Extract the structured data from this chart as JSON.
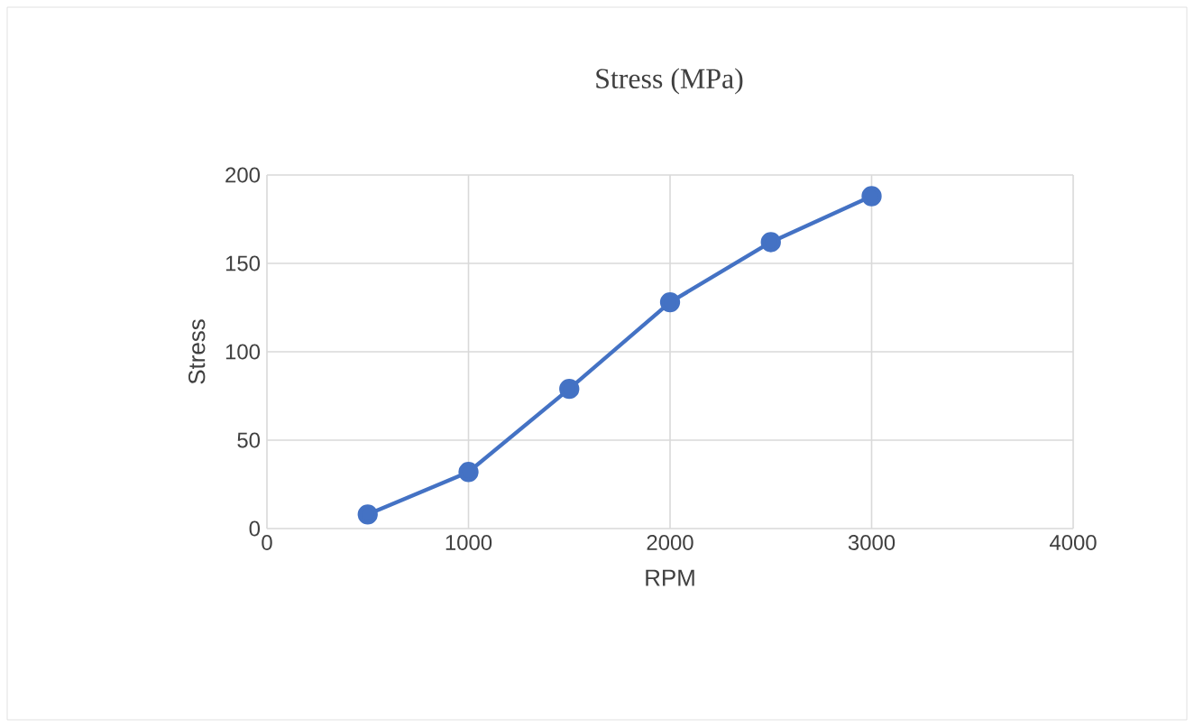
{
  "chart_data": {
    "type": "line",
    "title": "Stress (MPa)",
    "xlabel": "RPM",
    "ylabel": "Stress",
    "x": [
      500,
      1000,
      1500,
      2000,
      2500,
      3000
    ],
    "series": [
      {
        "color": "#4472c4",
        "values": [
          8,
          32,
          79,
          128,
          162,
          188
        ]
      }
    ],
    "xlim": [
      0,
      4000
    ],
    "xticks": [
      0,
      1000,
      2000,
      3000,
      4000
    ],
    "ylim": [
      0,
      200
    ],
    "yticks": [
      0,
      50,
      100,
      150,
      200
    ],
    "grid": true,
    "marker": "circle",
    "line_style": "solid"
  }
}
